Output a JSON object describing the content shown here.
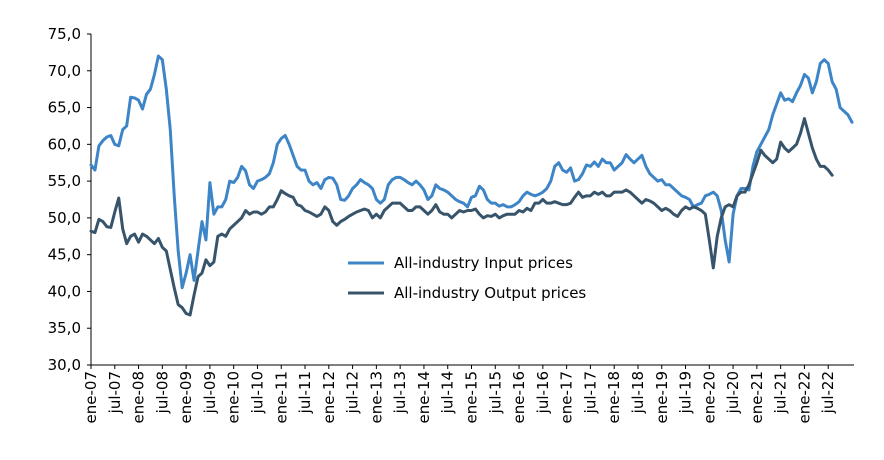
{
  "chart_data": {
    "type": "line",
    "title": "",
    "xlabel": "",
    "ylabel": "",
    "ylim": [
      30,
      75
    ],
    "yticks": [
      "30,0",
      "35,0",
      "40,0",
      "45,0",
      "50,0",
      "55,0",
      "60,0",
      "65,0",
      "70,0",
      "75,0"
    ],
    "grid": false,
    "legend": {
      "position": "center"
    },
    "x_tick_labels": [
      "ene-07",
      "jul-07",
      "ene-08",
      "jul-08",
      "ene-09",
      "jul-09",
      "ene-10",
      "jul-10",
      "ene-11",
      "jul-11",
      "ene-12",
      "jul-12",
      "ene-13",
      "jul-13",
      "ene-14",
      "jul-14",
      "ene-15",
      "jul-15",
      "ene-16",
      "jul-16",
      "ene-17",
      "jul-17",
      "ene-18",
      "jul-18",
      "ene-19",
      "jul-19",
      "ene-20",
      "jul-20",
      "ene-21",
      "jul-21",
      "ene-22",
      "jul-22"
    ],
    "series": [
      {
        "name": "All-industry Input prices",
        "color": "#3d85c6",
        "values": [
          57.2,
          56.5,
          59.8,
          60.5,
          61.0,
          61.2,
          60.0,
          59.8,
          62.0,
          62.5,
          66.4,
          66.3,
          66.0,
          64.8,
          66.8,
          67.5,
          69.5,
          72.0,
          71.5,
          67.5,
          62.0,
          53.0,
          45.5,
          40.5,
          42.5,
          45.0,
          41.5,
          45.5,
          49.5,
          47.0,
          54.8,
          50.5,
          51.5,
          51.5,
          52.5,
          55.0,
          54.8,
          55.5,
          57.0,
          56.4,
          54.5,
          54.0,
          55.0,
          55.2,
          55.5,
          56.0,
          57.5,
          60.0,
          60.8,
          61.2,
          60.0,
          58.5,
          57.0,
          56.5,
          56.5,
          55.0,
          54.5,
          54.8,
          54.0,
          55.2,
          55.5,
          55.4,
          54.5,
          52.5,
          52.4,
          53.0,
          54.0,
          54.5,
          55.2,
          54.8,
          54.5,
          54.0,
          52.5,
          52.0,
          52.5,
          54.5,
          55.2,
          55.5,
          55.5,
          55.2,
          54.8,
          54.5,
          55.0,
          54.5,
          53.8,
          52.5,
          53.0,
          54.5,
          54.0,
          53.8,
          53.5,
          53.0,
          52.5,
          52.2,
          52.0,
          51.5,
          52.8,
          53.0,
          54.3,
          53.8,
          52.5,
          52.0,
          52.0,
          51.6,
          51.8,
          51.5,
          51.5,
          51.8,
          52.2,
          53.0,
          53.5,
          53.2,
          53.0,
          53.2,
          53.5,
          54.0,
          55.0,
          57.0,
          57.5,
          56.5,
          56.2,
          56.8,
          55.0,
          55.2,
          56.0,
          57.2,
          57.0,
          57.6,
          57.0,
          58.0,
          57.5,
          57.5,
          56.5,
          57.0,
          57.5,
          58.6,
          58.0,
          57.5,
          58.0,
          58.5,
          57.0,
          56.0,
          55.5,
          55.0,
          55.2,
          54.5,
          54.5,
          54.0,
          53.5,
          53.0,
          52.8,
          52.5,
          51.5,
          51.8,
          52.0,
          53.0,
          53.2,
          53.5,
          53.0,
          51.0,
          47.0,
          44.0,
          50.5,
          53.0,
          54.0,
          54.0,
          53.8,
          57.0,
          59.0,
          60.0,
          61.0,
          62.0,
          64.0,
          65.5,
          67.0,
          66.0,
          66.2,
          65.8,
          67.0,
          68.0,
          69.5,
          69.0,
          67.0,
          68.5,
          71.0,
          71.5,
          71.0,
          68.5,
          67.5,
          65.0,
          64.5,
          64.0,
          63.0
        ]
      },
      {
        "name": "All-industry Output prices",
        "color": "#37546b",
        "values": [
          48.2,
          48.0,
          49.8,
          49.5,
          48.8,
          48.7,
          50.8,
          52.7,
          48.5,
          46.5,
          47.5,
          47.8,
          46.7,
          47.8,
          47.5,
          47.0,
          46.5,
          47.2,
          46.0,
          45.5,
          43.0,
          40.5,
          38.2,
          37.8,
          37.0,
          36.8,
          39.5,
          42.0,
          42.5,
          44.3,
          43.5,
          44.0,
          47.5,
          47.8,
          47.5,
          48.5,
          49.0,
          49.5,
          50.0,
          51.0,
          50.5,
          50.8,
          50.8,
          50.5,
          50.8,
          51.5,
          51.5,
          52.5,
          53.7,
          53.3,
          53.0,
          52.8,
          51.8,
          51.6,
          51.0,
          50.8,
          50.5,
          50.2,
          50.5,
          51.5,
          51.0,
          49.5,
          49.0,
          49.5,
          49.8,
          50.2,
          50.5,
          50.8,
          51.0,
          51.2,
          51.0,
          50.0,
          50.5,
          50.0,
          51.0,
          51.5,
          52.0,
          52.0,
          52.0,
          51.5,
          51.0,
          51.0,
          51.5,
          51.5,
          51.0,
          50.5,
          51.0,
          51.8,
          50.8,
          50.5,
          50.5,
          50.0,
          50.5,
          51.0,
          50.8,
          51.0,
          51.0,
          51.2,
          50.5,
          50.0,
          50.3,
          50.2,
          50.5,
          50.0,
          50.3,
          50.5,
          50.5,
          50.5,
          51.0,
          50.8,
          51.3,
          51.0,
          52.0,
          52.0,
          52.5,
          52.0,
          52.0,
          52.2,
          52.0,
          51.8,
          51.8,
          52.0,
          52.8,
          53.5,
          52.8,
          53.0,
          53.0,
          53.5,
          53.2,
          53.5,
          53.0,
          53.0,
          53.5,
          53.5,
          53.5,
          53.8,
          53.5,
          53.0,
          52.5,
          52.0,
          52.5,
          52.3,
          52.0,
          51.5,
          51.0,
          51.3,
          51.0,
          50.5,
          50.2,
          51.0,
          51.5,
          51.2,
          51.5,
          51.3,
          51.0,
          50.5,
          47.0,
          43.2,
          47.5,
          50.0,
          51.5,
          51.8,
          51.5,
          53.0,
          53.5,
          53.5,
          54.5,
          56.0,
          57.5,
          59.2,
          58.5,
          58.0,
          57.5,
          58.0,
          60.3,
          59.5,
          59.0,
          59.5,
          60.0,
          61.5,
          63.5,
          61.5,
          59.5,
          58.0,
          57.0,
          57.0,
          56.5,
          55.8
        ]
      }
    ]
  }
}
